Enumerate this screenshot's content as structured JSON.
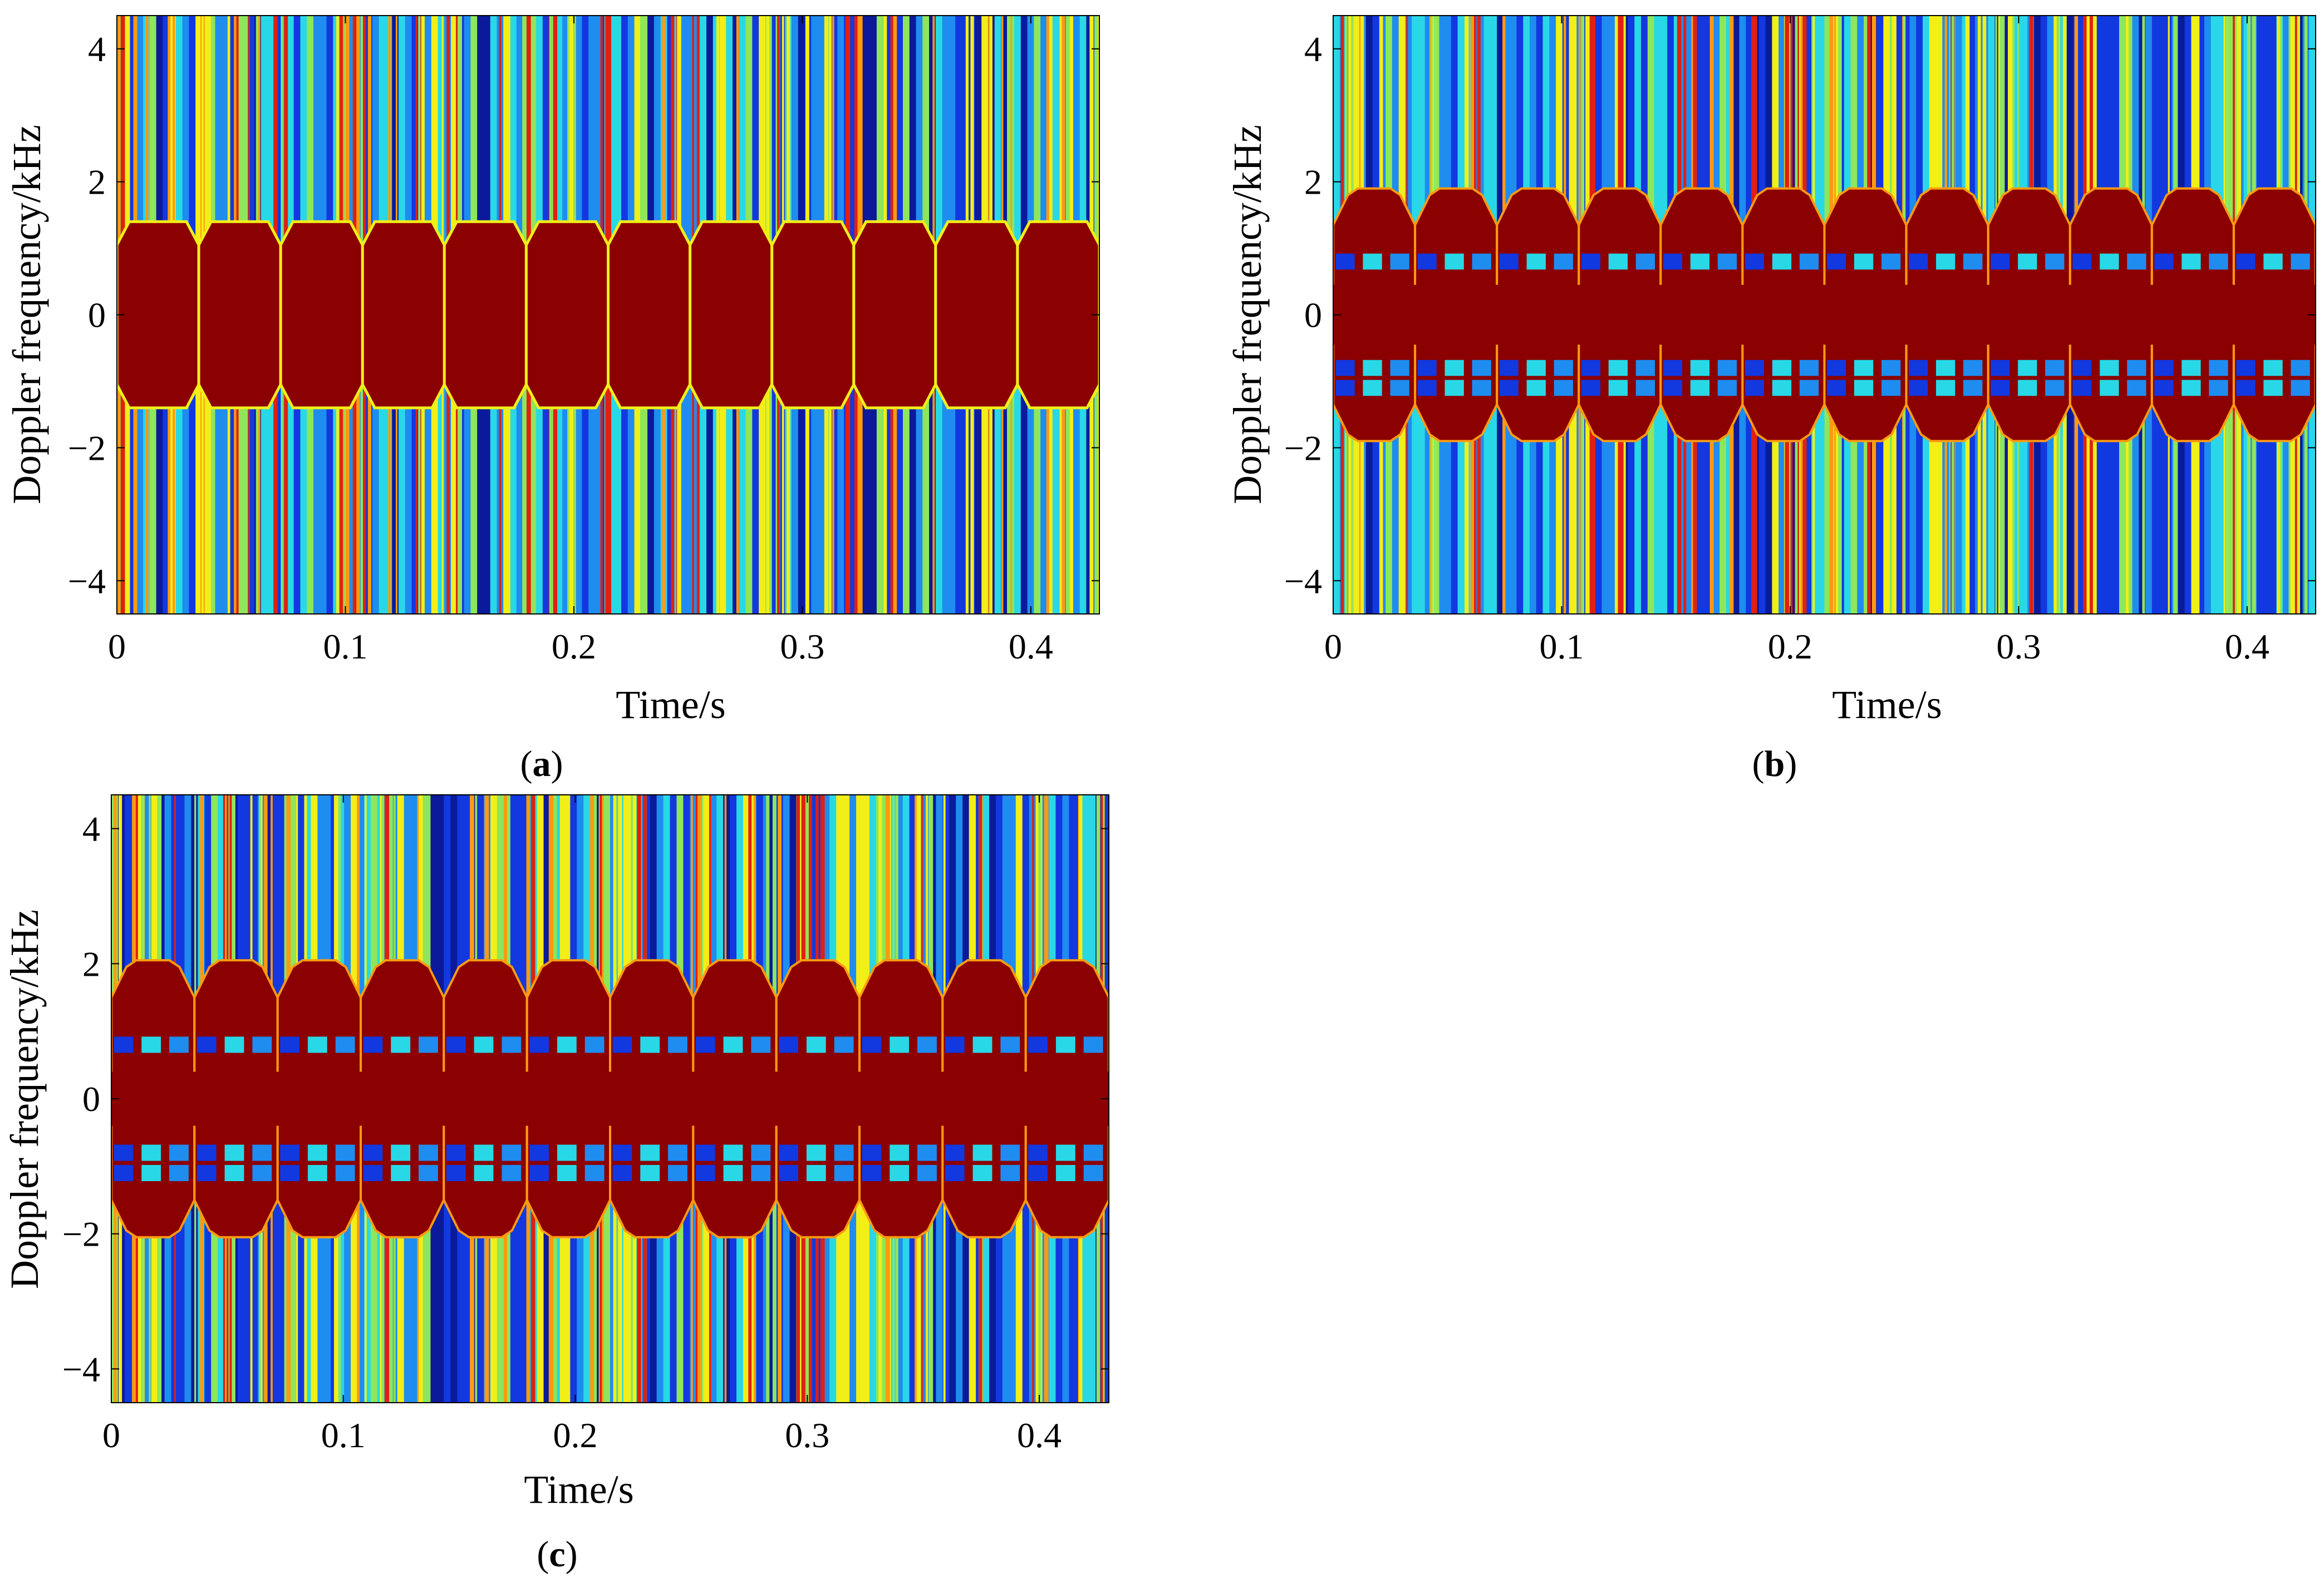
{
  "chart_data": [
    {
      "id": "a",
      "type": "heatmap",
      "subtype": "spectrogram",
      "caption_letter": "a",
      "xlabel": "Time/s",
      "ylabel": "Doppler frequency/kHz",
      "xlim": [
        0,
        0.43
      ],
      "ylim": [
        -4.5,
        4.5
      ],
      "xticks": [
        0,
        0.1,
        0.2,
        0.3,
        0.4
      ],
      "xtick_labels": [
        "0",
        "0.1",
        "0.2",
        "0.3",
        "0.4"
      ],
      "yticks": [
        4,
        2,
        0,
        -2,
        -4
      ],
      "ytick_labels": [
        "4",
        "2",
        "0",
        "−2",
        "−4"
      ],
      "colormap": "jet",
      "num_periods": 12,
      "core_band_khz": 1.05,
      "outer_band_khz": 1.4,
      "has_inner_blue_rows": false
    },
    {
      "id": "b",
      "type": "heatmap",
      "subtype": "spectrogram",
      "caption_letter": "b",
      "xlabel": "Time/s",
      "ylabel": "Doppler frequency/kHz",
      "xlim": [
        0,
        0.43
      ],
      "ylim": [
        -4.5,
        4.5
      ],
      "xticks": [
        0,
        0.1,
        0.2,
        0.3,
        0.4
      ],
      "xtick_labels": [
        "0",
        "0.1",
        "0.2",
        "0.3",
        "0.4"
      ],
      "yticks": [
        4,
        2,
        0,
        -2,
        -4
      ],
      "ytick_labels": [
        "4",
        "2",
        "0",
        "−2",
        "−4"
      ],
      "colormap": "jet",
      "num_periods": 12,
      "core_band_khz": 0.45,
      "outer_band_khz": 1.9,
      "has_inner_blue_rows": true
    },
    {
      "id": "c",
      "type": "heatmap",
      "subtype": "spectrogram",
      "caption_letter": "c",
      "xlabel": "Time/s",
      "ylabel": "Doppler frequency/kHz",
      "xlim": [
        0,
        0.43
      ],
      "ylim": [
        -4.5,
        4.5
      ],
      "xticks": [
        0,
        0.1,
        0.2,
        0.3,
        0.4
      ],
      "xtick_labels": [
        "0",
        "0.1",
        "0.2",
        "0.3",
        "0.4"
      ],
      "yticks": [
        4,
        2,
        0,
        -2,
        -4
      ],
      "ytick_labels": [
        "4",
        "2",
        "0",
        "−2",
        "−4"
      ],
      "colormap": "jet",
      "num_periods": 12,
      "core_band_khz": 0.4,
      "outer_band_khz": 2.05,
      "has_inner_blue_rows": true
    }
  ],
  "captions": {
    "a": {
      "open": "(",
      "letter": "a",
      "close": ")"
    },
    "b": {
      "open": "(",
      "letter": "b",
      "close": ")"
    },
    "c": {
      "open": "(",
      "letter": "c",
      "close": ")"
    }
  },
  "colors": {
    "dark_red": "#8b0000",
    "red": "#e02010",
    "orange": "#ff9a10",
    "yellow": "#f2ee18",
    "green": "#8ee65a",
    "cyan": "#28d8e6",
    "light_blue": "#1f8cf0",
    "blue": "#1238e0",
    "navy": "#0a1a9a"
  }
}
